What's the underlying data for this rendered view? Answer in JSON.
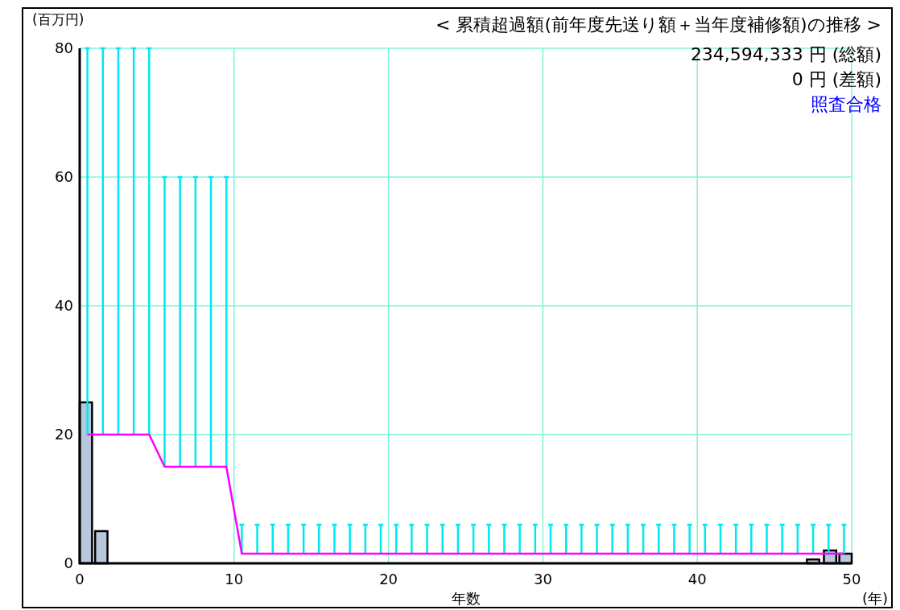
{
  "chart_data": {
    "type": "bar",
    "title": "< 累積超過額(前年度先送り額＋当年度補修額)の推移 >",
    "xlabel": "年数",
    "ylabel": "(百万円)",
    "annotations": [
      "234,594,333 円 (総額)",
      "0 円 (差額)",
      "照査合格",
      "(年)"
    ],
    "xlim": [
      0,
      50
    ],
    "ylim": [
      0,
      80
    ],
    "xticks": [
      0,
      10,
      20,
      30,
      40,
      50
    ],
    "yticks": [
      0,
      20,
      40,
      60,
      80
    ],
    "grid": true,
    "series": [
      {
        "color": "#b8c8dc",
        "x": [
          0.4,
          1.4,
          47.5,
          48.6,
          49.6
        ],
        "values": [
          25,
          5,
          0.6,
          2,
          1.5
        ]
      },
      {
        "type": "line",
        "color": "#ff00ff",
        "x": [
          0.5,
          1.5,
          2.5,
          3.5,
          4.5,
          5.5,
          6.5,
          7.5,
          8.5,
          9.5,
          10.5,
          11.5,
          12.5,
          13.5,
          14.5,
          15.5,
          16.5,
          17.5,
          18.5,
          19.5,
          20.5,
          21.5,
          22.5,
          23.5,
          24.5,
          25.5,
          26.5,
          27.5,
          28.5,
          29.5,
          30.5,
          31.5,
          32.5,
          33.5,
          34.5,
          35.5,
          36.5,
          37.5,
          38.5,
          39.5,
          40.5,
          41.5,
          42.5,
          43.5,
          44.5,
          45.5,
          46.5,
          47.5,
          48.5,
          49.5
        ],
        "values": [
          20,
          20,
          20,
          20,
          20,
          15,
          15,
          15,
          15,
          15,
          1.5,
          1.5,
          1.5,
          1.5,
          1.5,
          1.5,
          1.5,
          1.5,
          1.5,
          1.5,
          1.5,
          1.5,
          1.5,
          1.5,
          1.5,
          1.5,
          1.5,
          1.5,
          1.5,
          1.5,
          1.5,
          1.5,
          1.5,
          1.5,
          1.5,
          1.5,
          1.5,
          1.5,
          1.5,
          1.5,
          1.5,
          1.5,
          1.5,
          1.5,
          1.5,
          1.5,
          1.5,
          1.5,
          1.5,
          1.5
        ],
        "errors": [
          [
            20,
            80
          ],
          [
            20,
            80
          ],
          [
            20,
            80
          ],
          [
            20,
            80
          ],
          [
            20,
            80
          ],
          [
            15,
            60
          ],
          [
            15,
            60
          ],
          [
            15,
            60
          ],
          [
            15,
            60
          ],
          [
            15,
            60
          ],
          [
            1.5,
            6
          ],
          [
            1.5,
            6
          ],
          [
            1.5,
            6
          ],
          [
            1.5,
            6
          ],
          [
            1.5,
            6
          ],
          [
            1.5,
            6
          ],
          [
            1.5,
            6
          ],
          [
            1.5,
            6
          ],
          [
            1.5,
            6
          ],
          [
            1.5,
            6
          ],
          [
            1.5,
            6
          ],
          [
            1.5,
            6
          ],
          [
            1.5,
            6
          ],
          [
            1.5,
            6
          ],
          [
            1.5,
            6
          ],
          [
            1.5,
            6
          ],
          [
            1.5,
            6
          ],
          [
            1.5,
            6
          ],
          [
            1.5,
            6
          ],
          [
            1.5,
            6
          ],
          [
            1.5,
            6
          ],
          [
            1.5,
            6
          ],
          [
            1.5,
            6
          ],
          [
            1.5,
            6
          ],
          [
            1.5,
            6
          ],
          [
            1.5,
            6
          ],
          [
            1.5,
            6
          ],
          [
            1.5,
            6
          ],
          [
            1.5,
            6
          ],
          [
            1.5,
            6
          ],
          [
            1.5,
            6
          ],
          [
            1.5,
            6
          ],
          [
            1.5,
            6
          ],
          [
            1.5,
            6
          ],
          [
            1.5,
            6
          ],
          [
            1.5,
            6
          ],
          [
            1.5,
            6
          ],
          [
            1.5,
            6
          ],
          [
            1.5,
            6
          ],
          [
            1.5,
            6
          ]
        ]
      }
    ]
  }
}
